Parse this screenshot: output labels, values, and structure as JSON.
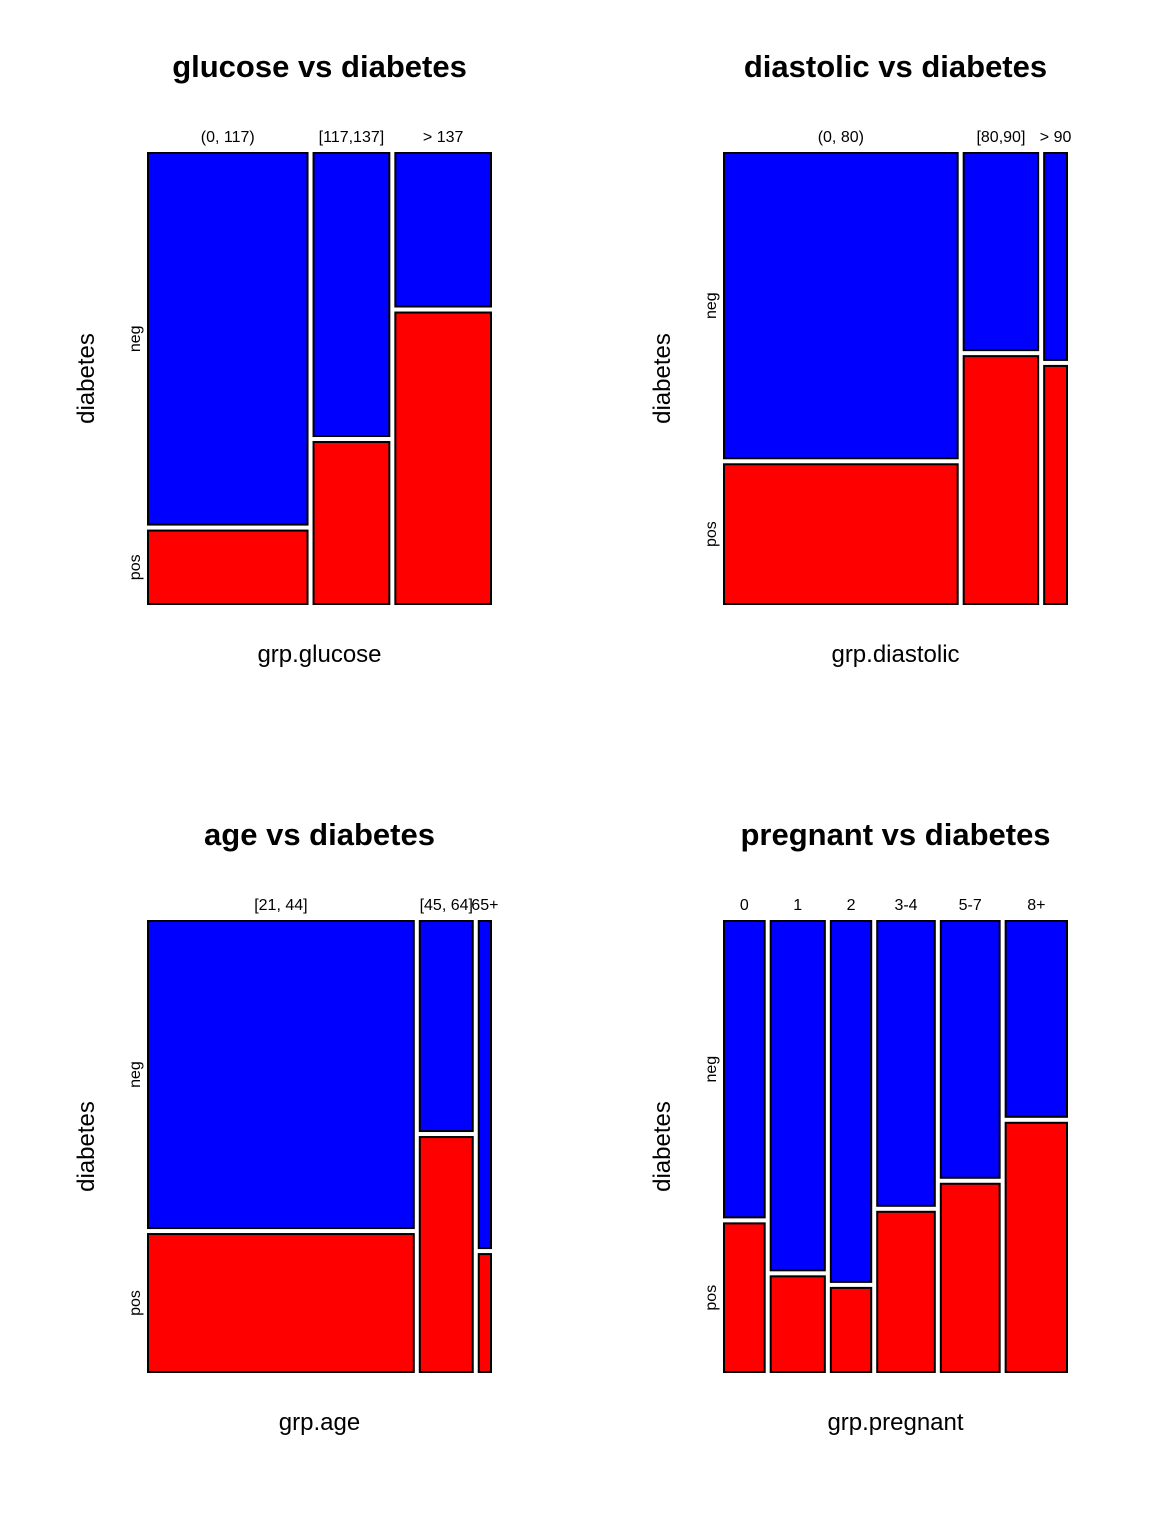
{
  "colors": {
    "neg": "#0000ff",
    "pos": "#ff0000"
  },
  "chart_data": [
    {
      "type": "mosaic",
      "title": "glucose vs diabetes",
      "xlabel": "grp.glucose",
      "ylabel": "diabetes",
      "y_categories": [
        "neg",
        "pos"
      ],
      "categories": [
        "(0, 117)",
        "[117,137]",
        "> 137"
      ],
      "column_proportions": [
        0.482,
        0.229,
        0.289
      ],
      "neg_share": [
        0.835,
        0.636,
        0.345
      ]
    },
    {
      "type": "mosaic",
      "title": "diastolic vs diabetes",
      "xlabel": "grp.diastolic",
      "ylabel": "diabetes",
      "y_categories": [
        "neg",
        "pos"
      ],
      "categories": [
        "(0, 80)",
        "[80,90]",
        "> 90"
      ],
      "column_proportions": [
        0.706,
        0.225,
        0.069
      ],
      "neg_share": [
        0.686,
        0.443,
        0.465
      ]
    },
    {
      "type": "mosaic",
      "title": "age vs diabetes",
      "xlabel": "grp.age",
      "ylabel": "diabetes",
      "y_categories": [
        "neg",
        "pos"
      ],
      "categories": [
        "[21, 44]",
        "[45, 64]",
        "65+"
      ],
      "column_proportions": [
        0.803,
        0.16,
        0.037
      ],
      "neg_share": [
        0.69,
        0.472,
        0.735
      ]
    },
    {
      "type": "mosaic",
      "title": "pregnant vs diabetes",
      "xlabel": "grp.pregnant",
      "ylabel": "diabetes",
      "y_categories": [
        "neg",
        "pos"
      ],
      "categories": [
        "0",
        "1",
        "2",
        "3-4",
        "5-7",
        "8+"
      ],
      "column_proportions": [
        0.13,
        0.173,
        0.129,
        0.184,
        0.188,
        0.196
      ],
      "neg_share": [
        0.666,
        0.785,
        0.811,
        0.64,
        0.577,
        0.44
      ]
    }
  ]
}
